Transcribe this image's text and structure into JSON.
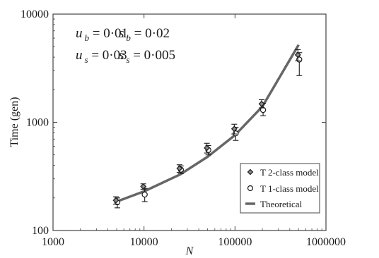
{
  "chart_data": {
    "type": "scatter",
    "title": "",
    "xlabel": "N",
    "ylabel": "Time (gen)",
    "xscale": "log",
    "yscale": "log",
    "xlim": [
      1000,
      1000000
    ],
    "ylim": [
      100,
      10000
    ],
    "x_ticks": [
      "1000",
      "10000",
      "100000",
      "1000000"
    ],
    "y_ticks": [
      "100",
      "1000",
      "10000"
    ],
    "grid": false,
    "legend_position": "bottom-right",
    "colors": {
      "theoretical": "#666666",
      "markers": "#1a1a1a",
      "frame": "#444444"
    },
    "annotations": [
      [
        {
          "sym": "u",
          "sub": "b",
          "val": " = 0·01"
        },
        {
          "sym": "s",
          "sub": "b",
          "val": " = 0·02"
        }
      ],
      [
        {
          "sym": "u",
          "sub": "s",
          "val": " = 0·03"
        },
        {
          "sym": "s",
          "sub": "s",
          "val": " = 0·005"
        }
      ]
    ],
    "series": [
      {
        "name": "T 2-class model",
        "marker": "diamond",
        "x": [
          5000,
          10000,
          25000,
          50000,
          100000,
          200000,
          500000
        ],
        "y": [
          190,
          255,
          375,
          580,
          870,
          1480,
          4200
        ],
        "err_low": [
          175,
          240,
          345,
          520,
          780,
          1360,
          3700
        ],
        "err_high": [
          205,
          270,
          405,
          640,
          960,
          1620,
          4700
        ]
      },
      {
        "name": "T 1-class model",
        "marker": "circle",
        "x": [
          5000,
          10000,
          25000,
          50000,
          100000,
          200000,
          500000
        ],
        "y": [
          182,
          215,
          365,
          555,
          790,
          1300,
          3800
        ],
        "err_low": [
          162,
          185,
          335,
          500,
          680,
          1150,
          2700
        ],
        "err_high": [
          200,
          245,
          395,
          610,
          900,
          1500,
          4400
        ]
      },
      {
        "name": "Theoretical",
        "marker": "line",
        "x": [
          5000,
          10000,
          25000,
          50000,
          100000,
          200000,
          500000
        ],
        "y": [
          185,
          230,
          330,
          480,
          760,
          1400,
          5200
        ]
      }
    ]
  }
}
